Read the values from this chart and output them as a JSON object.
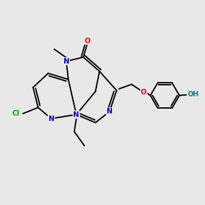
{
  "background_color": "#e8e8e8",
  "atom_colors": {
    "N": "#0000cc",
    "O": "#ff0000",
    "Cl": "#00aa00",
    "OH": "#008080"
  },
  "bond_color": "#000000",
  "figsize": [
    3.0,
    3.0
  ],
  "dpi": 100
}
